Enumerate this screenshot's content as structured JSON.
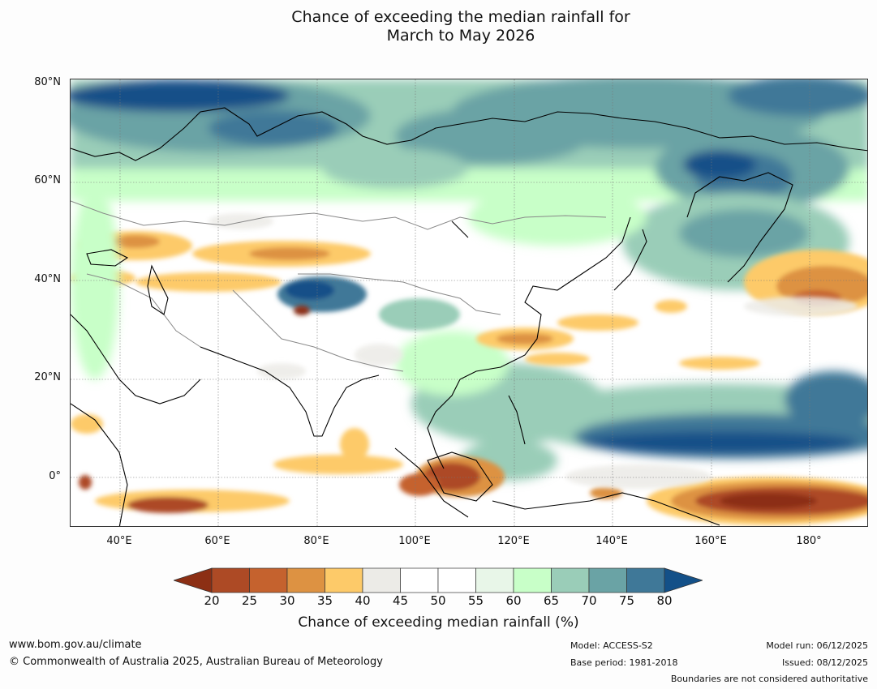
{
  "title": {
    "line1": "Chance of exceeding the median rainfall for",
    "line2": "March to May 2026"
  },
  "map": {
    "lat_labels": [
      "80°N",
      "60°N",
      "40°N",
      "20°N",
      "0°"
    ],
    "lon_labels": [
      "40°E",
      "60°E",
      "80°E",
      "100°E",
      "120°E",
      "140°E",
      "160°E",
      "180°"
    ],
    "extent": {
      "lon_min": 30,
      "lon_max": 192,
      "lat_min": -10,
      "lat_max": 80
    }
  },
  "colorbar": {
    "ticks": [
      "20",
      "25",
      "30",
      "35",
      "40",
      "45",
      "50",
      "55",
      "60",
      "65",
      "70",
      "75",
      "80"
    ],
    "colors": [
      "#8c2f14",
      "#ad4a25",
      "#c5622e",
      "#dd9242",
      "#fdca69",
      "#ecebe7",
      "#ffffff",
      "#ffffff",
      "#e8f6e8",
      "#c8ffc8",
      "#9acdb8",
      "#6aa3a5",
      "#3f7898",
      "#135088"
    ],
    "label": "Chance of exceeding median rainfall (%)"
  },
  "footer": {
    "website": "www.bom.gov.au/climate",
    "copyright": "© Commonwealth of Australia 2025, Australian Bureau of Meteorology",
    "model": "Model: ACCESS-S2",
    "base_period": "Base period: 1981-2018",
    "model_run": "Model run: 06/12/2025",
    "issued": "Issued: 08/12/2025",
    "disclaimer": "Boundaries are not considered authoritative"
  }
}
